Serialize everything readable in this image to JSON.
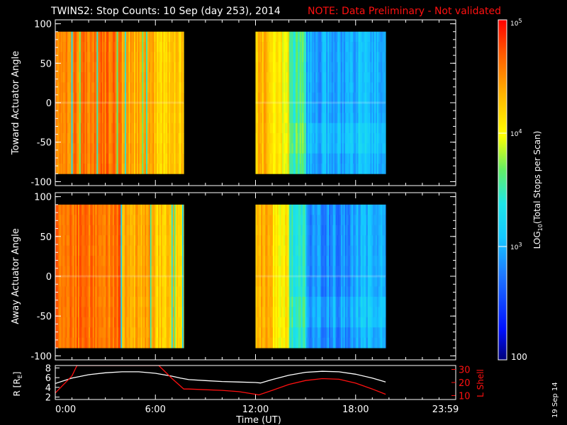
{
  "header": {
    "title": "TWINS2: Stop Counts: 10 Sep (day 253), 2014",
    "note": "NOTE: Data Preliminary - Not validated"
  },
  "colors": {
    "title": "#ffffff",
    "note": "#ff1010",
    "axis": "#ffffff",
    "r_line": "#ffffff",
    "l_line": "#ff1010"
  },
  "side_date": "19 Sep 14",
  "chart_data": [
    {
      "type": "heatmap",
      "panel": "toward",
      "ylabel": "Toward Actuator Angle",
      "xlim": [
        0,
        24
      ],
      "ylim": [
        -105,
        105
      ],
      "yticks": [
        -100,
        -50,
        0,
        50,
        100
      ],
      "data_segments": [
        [
          0,
          7.7
        ],
        [
          12.0,
          19.8
        ]
      ],
      "z_log10_levels": {
        "t0_2": 4.55,
        "t2_4": 4.6,
        "t4_6": 4.35,
        "t6_7p7": 4.2,
        "t12_13": 4.3,
        "t13_14": 4.05,
        "t14_15": 3.55,
        "t15_18": 2.95,
        "t18_19p8": 3.05
      }
    },
    {
      "type": "heatmap",
      "panel": "away",
      "ylabel": "Away Actuator Angle",
      "xlim": [
        0,
        24
      ],
      "ylim": [
        -105,
        105
      ],
      "yticks": [
        -100,
        -50,
        0,
        50,
        100
      ],
      "data_segments": [
        [
          0,
          7.7
        ],
        [
          12.0,
          19.8
        ]
      ],
      "z_log10_levels": {
        "t0_2": 4.6,
        "t2_4": 4.6,
        "t4_6": 4.4,
        "t6_7p7": 4.25,
        "t12_13": 4.35,
        "t13_14": 4.05,
        "t14_15": 3.45,
        "t15_18": 2.85,
        "t18_19p8": 3.0
      }
    },
    {
      "type": "line",
      "panel": "orbit",
      "ylabel": "R [R",
      "ylabel_sub": "E",
      "ylabel_end": "]",
      "y2label": "L Shell",
      "xlabel": "Time (UT)",
      "xlim": [
        0,
        24
      ],
      "ylim": [
        1.5,
        8.5
      ],
      "yticks": [
        2,
        4,
        6,
        8
      ],
      "y2lim": [
        7,
        33
      ],
      "y2ticks": [
        10,
        20,
        30
      ],
      "xtick_labels": [
        {
          "x": 0,
          "label": "0:00"
        },
        {
          "x": 6,
          "label": "6:00"
        },
        {
          "x": 12,
          "label": "12:00"
        },
        {
          "x": 18,
          "label": "18:00"
        },
        {
          "x": 23.98,
          "label": "23:59"
        }
      ],
      "series": [
        {
          "key": "R",
          "x": [
            0,
            1,
            2,
            3,
            4,
            5,
            6,
            7,
            7.5,
            8,
            9,
            10,
            11,
            12,
            12.3,
            13,
            14,
            15,
            16,
            17,
            18,
            19,
            19.8
          ],
          "values": [
            4.8,
            5.9,
            6.6,
            7.0,
            7.2,
            7.2,
            6.9,
            6.3,
            5.9,
            5.6,
            5.4,
            5.2,
            5.1,
            5.0,
            4.9,
            5.6,
            6.5,
            7.1,
            7.3,
            7.2,
            6.7,
            5.9,
            5.1
          ]
        },
        {
          "key": "L",
          "x": [
            0,
            1,
            1.3,
            6.2,
            7.0,
            7.7,
            8,
            9,
            10,
            11,
            12,
            12.2,
            13,
            14,
            15,
            16,
            17,
            18,
            19,
            19.8
          ],
          "values": [
            12,
            25,
            33,
            33,
            23,
            15,
            15,
            14.5,
            14,
            13,
            11,
            10.5,
            14,
            18.5,
            21.5,
            23,
            22.5,
            19.5,
            15,
            11
          ]
        }
      ]
    }
  ],
  "colorbar": {
    "title_prefix": "LOG",
    "title_sub": "10",
    "title_suffix": "(Total Stops per Scan)",
    "zlim_log10": [
      2,
      5
    ],
    "ticks": [
      {
        "v": 5,
        "base": "10",
        "exp": "5"
      },
      {
        "v": 4,
        "base": "10",
        "exp": "4"
      },
      {
        "v": 3,
        "base": "10",
        "exp": "3"
      }
    ],
    "bottom_label": "100"
  }
}
